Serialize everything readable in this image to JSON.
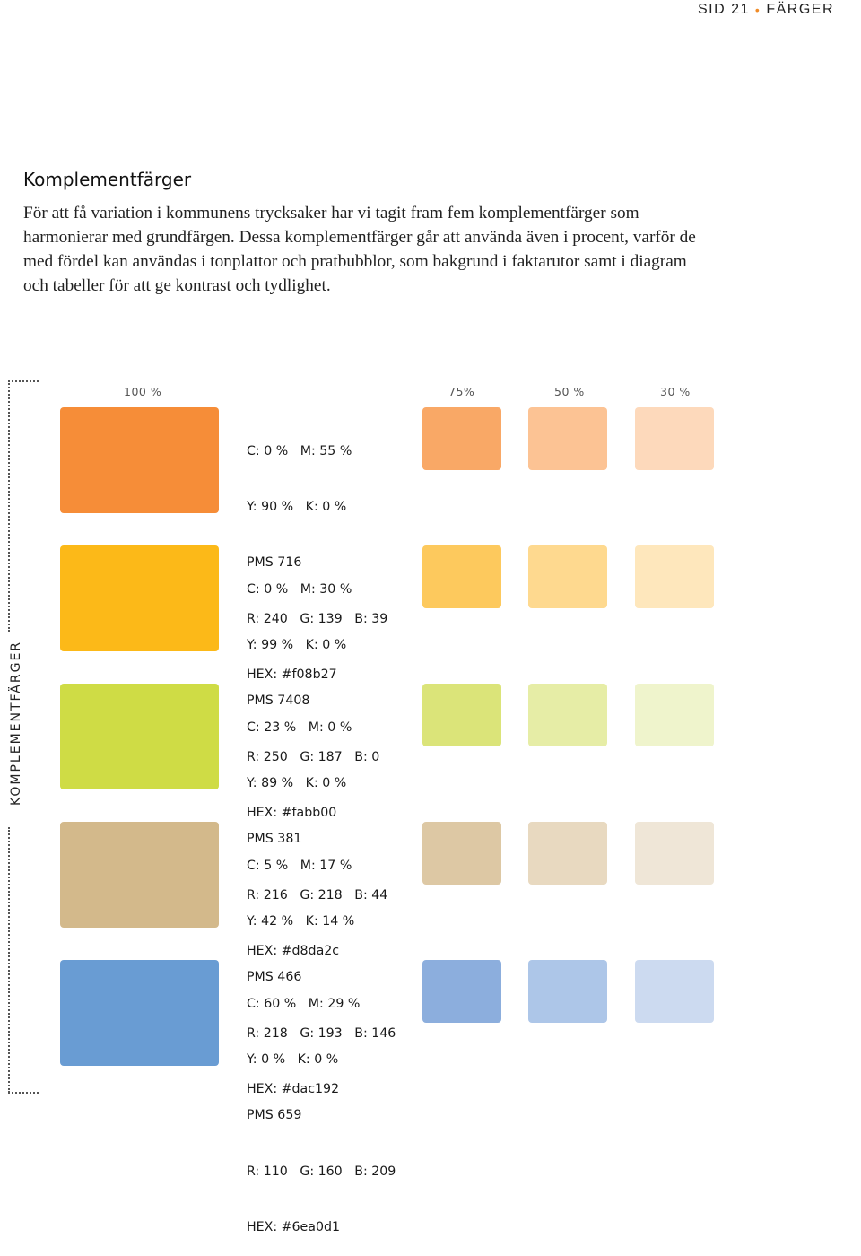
{
  "header": {
    "page": "SID 21",
    "separator": "•",
    "section": "FÄRGER"
  },
  "title": "Komplementfärger",
  "intro": "För att få variation i kommunens trycksaker har vi tagit fram fem komplementfärger som harmonierar med grundfärgen. Dessa komplementfärger går att använda även i procent, varför de med fördel kan användas i tonplattor och pratbubblor, som bakgrund i faktarutor samt i diagram och tabeller för att ge kontrast och tydlighet.",
  "side_label": "KOMPLEMENTFÄRGER",
  "columns": {
    "full": "100 %",
    "p75": "75%",
    "p50": "50 %",
    "p30": "30 %"
  },
  "colors": [
    {
      "cmyk_line1": "C: 0 %   M: 55 %",
      "cmyk_line2": "Y: 90 %   K: 0 %",
      "pms": "PMS 716",
      "rgb": "R: 240   G: 139   B: 39",
      "hex": "HEX: #f08b27",
      "swatch_100": "#f68d38",
      "swatch_75": "#f9a866",
      "swatch_50": "#fcc394",
      "swatch_30": "#fdd9bb"
    },
    {
      "cmyk_line1": "C: 0 %   M: 30 %",
      "cmyk_line2": "Y: 99 %   K: 0 %",
      "pms": "PMS 7408",
      "rgb": "R: 250   G: 187   B: 0",
      "hex": "HEX: #fabb00",
      "swatch_100": "#fcb918",
      "swatch_75": "#fdc95d",
      "swatch_50": "#fed98f",
      "swatch_30": "#fee7bc"
    },
    {
      "cmyk_line1": "C: 23 %   M: 0 %",
      "cmyk_line2": "Y: 89 %   K: 0 %",
      "pms": "PMS 381",
      "rgb": "R: 216   G: 218   B: 44",
      "hex": "HEX: #d8da2c",
      "swatch_100": "#cfdc45",
      "swatch_75": "#dbe479",
      "swatch_50": "#e6eda6",
      "swatch_30": "#eff4cc"
    },
    {
      "cmyk_line1": "C: 5 %   M: 17 %",
      "cmyk_line2": "Y: 42 %   K: 14 %",
      "pms": "PMS 466",
      "rgb": "R: 218   G: 193   B: 146",
      "hex": "HEX: #dac192",
      "swatch_100": "#d3b98b",
      "swatch_75": "#ddc8a4",
      "swatch_50": "#e8d9c0",
      "swatch_30": "#efe6d7"
    },
    {
      "cmyk_line1": "C: 60 %   M: 29 %",
      "cmyk_line2": "Y: 0 %   K: 0 %",
      "pms": "PMS 659",
      "rgb": "R: 110   G: 160   B: 209",
      "hex": "HEX: #6ea0d1",
      "swatch_100": "#699cd3",
      "swatch_75": "#8caedd",
      "swatch_50": "#adc6e8",
      "swatch_30": "#ccdaf0"
    }
  ]
}
